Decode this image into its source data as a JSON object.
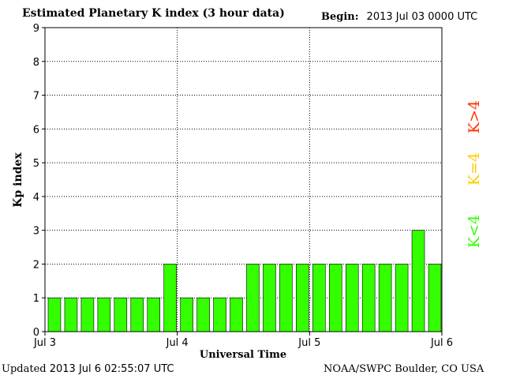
{
  "header": {
    "title": "Estimated Planetary K index (3 hour data)",
    "begin_label": "Begin:",
    "begin_value": "2013 Jul 03 0000 UTC"
  },
  "footer": {
    "updated_label": "Updated",
    "updated_value": "2013 Jul  6 02:55:07 UTC",
    "credit": "NOAA/SWPC Boulder, CO USA"
  },
  "legend": [
    {
      "label": "K>4",
      "color": "#ff3300"
    },
    {
      "label": "K=4",
      "color": "#ffcc00"
    },
    {
      "label": "K<4",
      "color": "#33ff00"
    }
  ],
  "chart_data": {
    "type": "bar",
    "title": "Estimated Planetary K index (3 hour data)",
    "xlabel": "Universal Time",
    "ylabel": "Kp index",
    "ylim": [
      0,
      9
    ],
    "yticks": [
      0,
      1,
      2,
      3,
      4,
      5,
      6,
      7,
      8,
      9
    ],
    "xticks": [
      "Jul 3",
      "Jul 4",
      "Jul 5",
      "Jul 6"
    ],
    "grid": true,
    "bar_color": "#33ff00",
    "values": [
      1,
      1,
      1,
      1,
      1,
      1,
      1,
      2,
      1,
      1,
      1,
      1,
      2,
      2,
      2,
      2,
      2,
      2,
      2,
      2,
      2,
      2,
      3,
      2
    ]
  }
}
